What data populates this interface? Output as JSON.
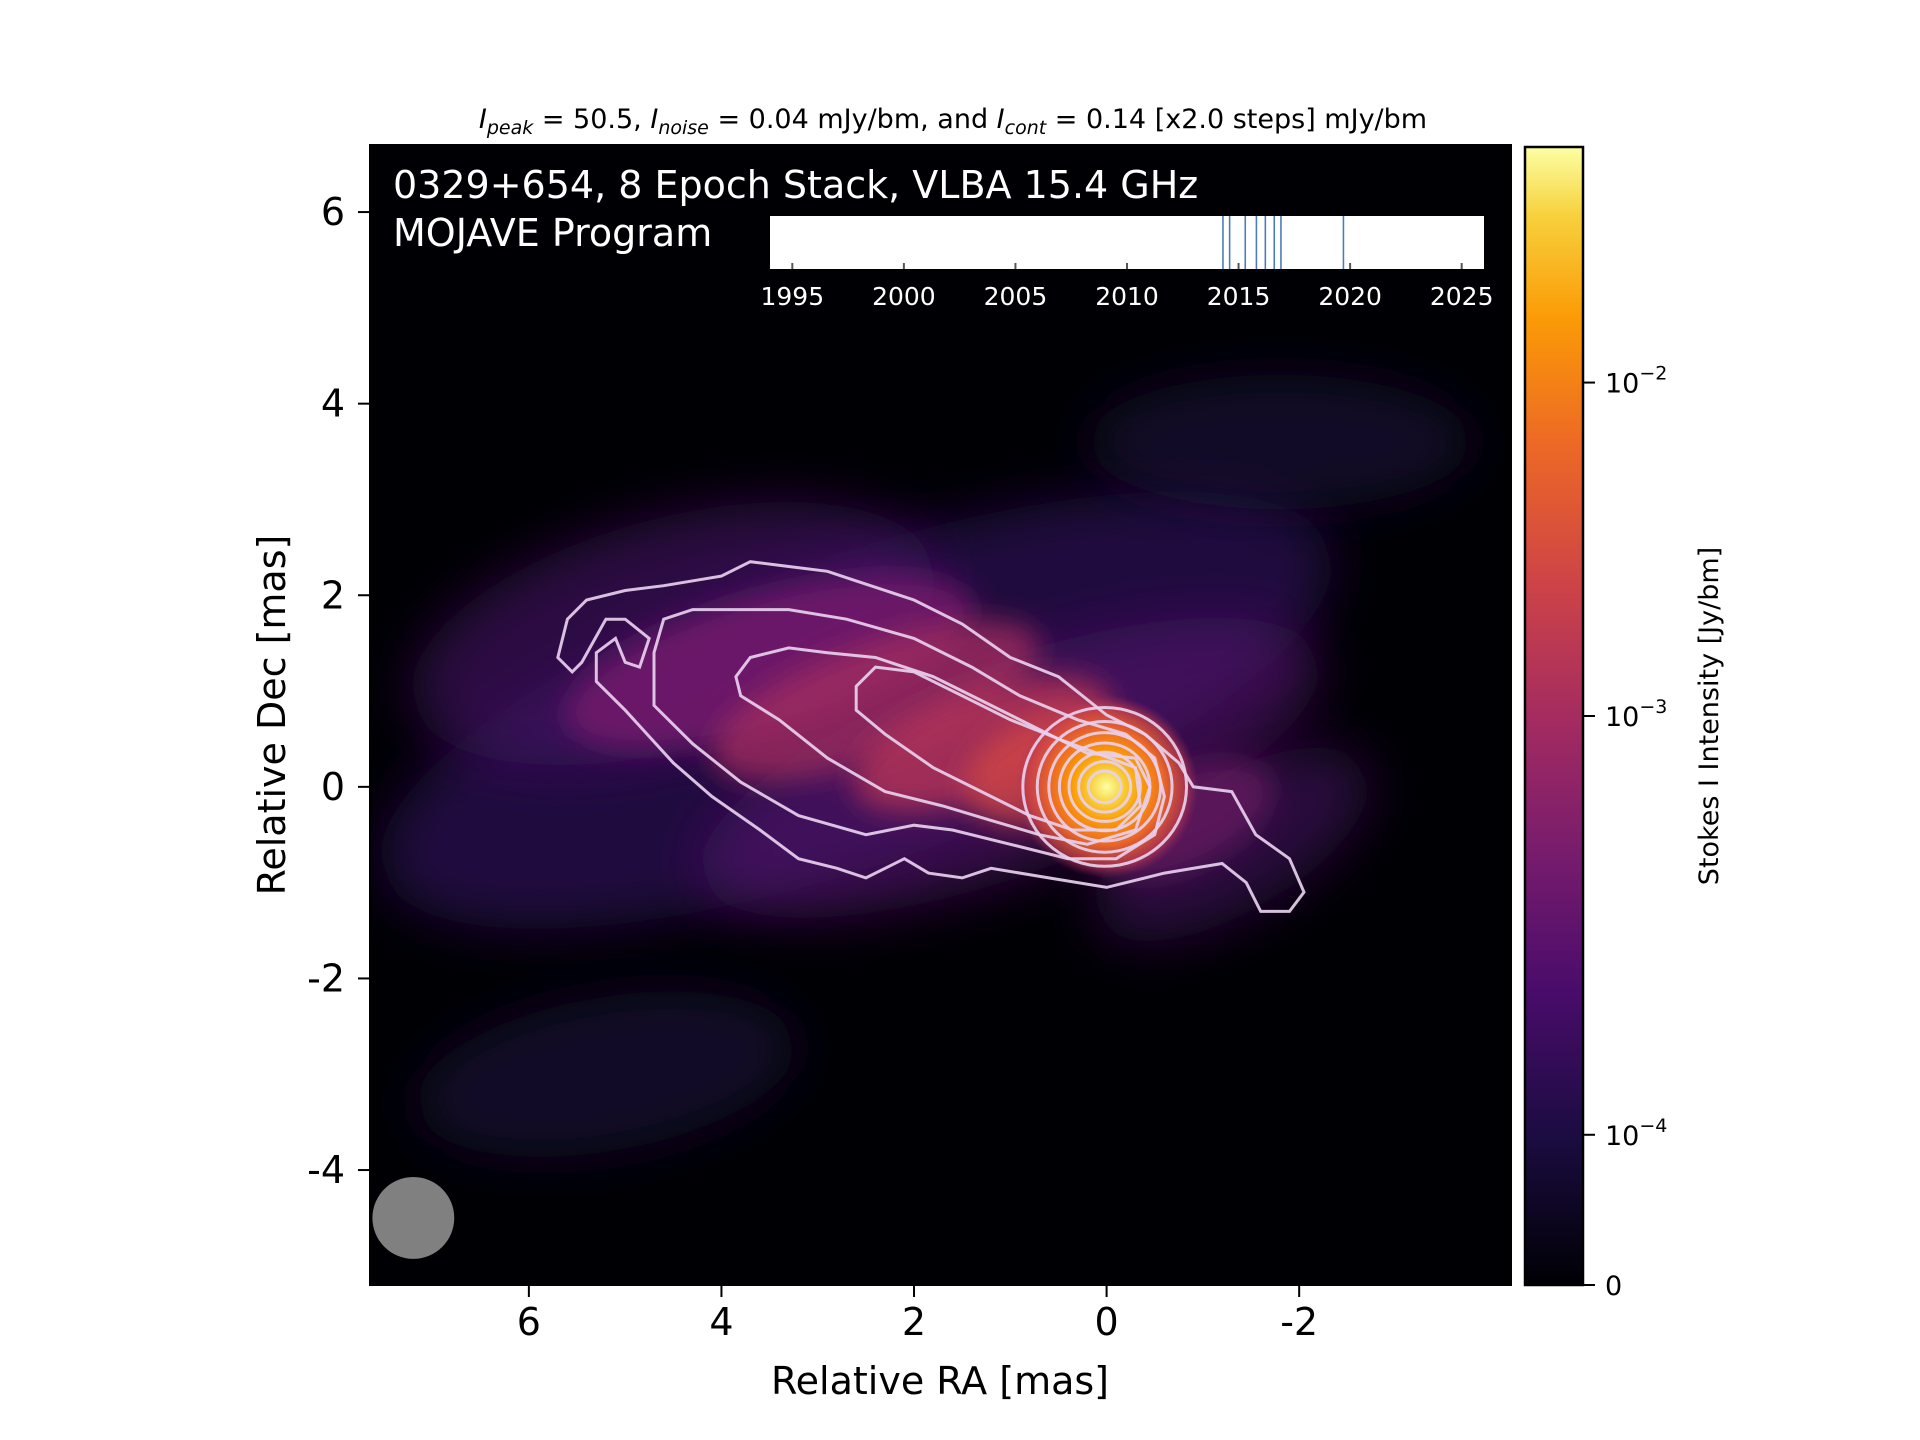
{
  "chart_data": {
    "type": "heatmap",
    "title": {
      "parts": [
        {
          "t": "I",
          "style": "italic"
        },
        {
          "t": "peak",
          "style": "sub"
        },
        {
          "t": " = 50.5, "
        },
        {
          "t": "I",
          "style": "italic"
        },
        {
          "t": "noise",
          "style": "sub"
        },
        {
          "t": " = 0.04 mJy/bm, and "
        },
        {
          "t": "I",
          "style": "italic"
        },
        {
          "t": "cont",
          "style": "sub"
        },
        {
          "t": " = 0.14 [x2.0 steps] mJy/bm"
        }
      ]
    },
    "overlay_line1": "0329+654, 8 Epoch Stack, VLBA 15.4 GHz",
    "overlay_line2": "MOJAVE Program",
    "xlabel": "Relative RA [mas]",
    "ylabel": "Relative Dec [mas]",
    "xlim": [
      7.65,
      -4.2
    ],
    "ylim": [
      -5.2,
      6.7
    ],
    "x_ticks": [
      6,
      4,
      2,
      0,
      -2
    ],
    "x_tick_labels": [
      "6",
      "4",
      "2",
      "0",
      "-2"
    ],
    "y_ticks": [
      6,
      4,
      2,
      0,
      -2,
      -4
    ],
    "y_tick_labels": [
      "6",
      "4",
      "2",
      "0",
      "-2",
      "-4"
    ],
    "colormap": "inferno",
    "colorbar": {
      "label": "Stokes I Intensity [Jy/bm]",
      "scale": "symlog",
      "ticks": [
        {
          "value": 0,
          "label": "0",
          "frac": 0.0
        },
        {
          "value": 0.0001,
          "base": "10",
          "exp": "−4",
          "frac": 0.132
        },
        {
          "value": 0.001,
          "base": "10",
          "exp": "−3",
          "frac": 0.5
        },
        {
          "value": 0.01,
          "base": "10",
          "exp": "−2",
          "frac": 0.793
        }
      ]
    },
    "peak_intensity_mJy_per_beam": 50.5,
    "noise_mJy_per_beam": 0.04,
    "lowest_contour_mJy_per_beam": 0.14,
    "contour_step_factor": 2.0,
    "beam": {
      "x": 7.2,
      "y": -4.5,
      "diameter_mas": 0.85,
      "color": "#808080"
    },
    "epoch_timeline": {
      "xlim": [
        1994,
        2026
      ],
      "ticks": [
        1995,
        2000,
        2005,
        2010,
        2015,
        2020,
        2025
      ],
      "tick_labels": [
        "1995",
        "2000",
        "2005",
        "2010",
        "2015",
        "2020",
        "2025"
      ],
      "epochs": [
        2014.3,
        2014.6,
        2015.3,
        2015.8,
        2016.2,
        2016.6,
        2016.9,
        2019.7
      ],
      "line_color": "#4a7ebb"
    }
  }
}
